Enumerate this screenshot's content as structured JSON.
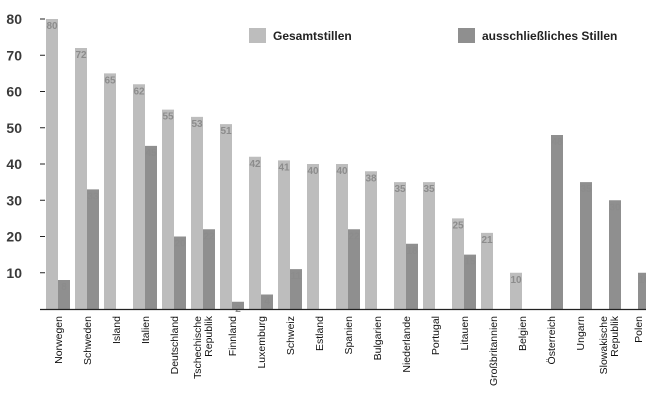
{
  "chart_data": {
    "type": "bar",
    "ylim": [
      0,
      80
    ],
    "yticks": [
      10,
      20,
      30,
      40,
      50,
      60,
      70,
      80
    ],
    "grid": false,
    "legend_position": "top-right",
    "colors": {
      "gesamt": "#bdbdbd",
      "ausschl": "#8f8f8f",
      "label": "#8c8c8c",
      "axis": "#222222"
    },
    "categories": [
      [
        "Norwegen"
      ],
      [
        "Schweden"
      ],
      [
        "Island"
      ],
      [
        "Italien"
      ],
      [
        "Deutschland"
      ],
      [
        "Tschechische",
        "Republik"
      ],
      [
        "Finnland"
      ],
      [
        "Luxemburg"
      ],
      [
        "Schweiz"
      ],
      [
        "Estland"
      ],
      [
        "Spanien"
      ],
      [
        "Bulgarien"
      ],
      [
        "Niederlande"
      ],
      [
        "Portugal"
      ],
      [
        "Litauen"
      ],
      [
        "Großbritannien"
      ],
      [
        "Belgien"
      ],
      [
        "Österreich"
      ],
      [
        "Ungarn"
      ],
      [
        "Slowakische",
        "Republik"
      ],
      [
        "Polen"
      ]
    ],
    "series": [
      {
        "name": "Gesamtstillen",
        "values": [
          80,
          72,
          65,
          62,
          55,
          53,
          51,
          42,
          41,
          40,
          40,
          38,
          35,
          35,
          25,
          21,
          10,
          null,
          null,
          null,
          null
        ]
      },
      {
        "name": "ausschließliches Stillen",
        "values": [
          8,
          33,
          null,
          45,
          20,
          22,
          2,
          4,
          11,
          null,
          22,
          null,
          18,
          null,
          15,
          null,
          null,
          48,
          35,
          30,
          10
        ]
      }
    ]
  }
}
